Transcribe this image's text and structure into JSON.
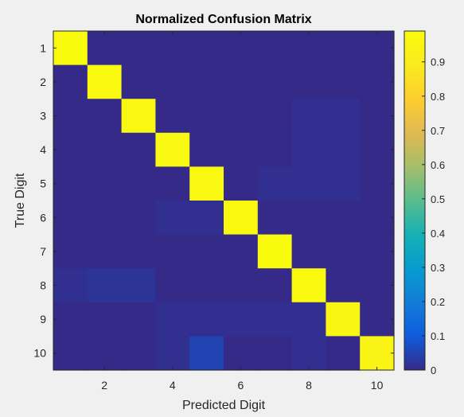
{
  "chart_data": {
    "type": "heatmap",
    "title": "Normalized Confusion Matrix",
    "xlabel": "Predicted Digit",
    "ylabel": "True Digit",
    "rows": [
      1,
      2,
      3,
      4,
      5,
      6,
      7,
      8,
      9,
      10
    ],
    "cols": [
      1,
      2,
      3,
      4,
      5,
      6,
      7,
      8,
      9,
      10
    ],
    "x_ticks": [
      2,
      4,
      6,
      8,
      10
    ],
    "y_ticks": [
      1,
      2,
      3,
      4,
      5,
      6,
      7,
      8,
      9,
      10
    ],
    "values": [
      [
        0.99,
        0.0,
        0.0,
        0.0,
        0.0,
        0.0,
        0.0,
        0.0,
        0.0,
        0.0
      ],
      [
        0.0,
        0.98,
        0.0,
        0.0,
        0.0,
        0.0,
        0.0,
        0.0,
        0.0,
        0.0
      ],
      [
        0.0,
        0.0,
        0.97,
        0.0,
        0.0,
        0.0,
        0.0,
        0.01,
        0.01,
        0.0
      ],
      [
        0.0,
        0.0,
        0.0,
        0.97,
        0.0,
        0.0,
        0.0,
        0.01,
        0.01,
        0.0
      ],
      [
        0.0,
        0.0,
        0.0,
        0.0,
        0.97,
        0.0,
        0.01,
        0.01,
        0.01,
        0.0
      ],
      [
        0.0,
        0.0,
        0.0,
        0.01,
        0.01,
        0.98,
        0.0,
        0.0,
        0.0,
        0.0
      ],
      [
        0.0,
        0.0,
        0.0,
        0.0,
        0.0,
        0.0,
        0.99,
        0.0,
        0.0,
        0.0
      ],
      [
        0.01,
        0.02,
        0.02,
        0.0,
        0.0,
        0.0,
        0.0,
        0.98,
        0.0,
        0.0
      ],
      [
        0.0,
        0.0,
        0.0,
        0.01,
        0.01,
        0.01,
        0.01,
        0.01,
        0.96,
        0.0
      ],
      [
        0.0,
        0.0,
        0.0,
        0.01,
        0.05,
        0.0,
        0.0,
        0.01,
        0.0,
        0.94
      ]
    ],
    "colorbar": {
      "min": 0,
      "max": 0.99,
      "ticks": [
        0,
        0.1,
        0.2,
        0.3,
        0.4,
        0.5,
        0.6,
        0.7,
        0.8,
        0.9
      ],
      "tick_labels": [
        "0",
        "0.1",
        "0.2",
        "0.3",
        "0.4",
        "0.5",
        "0.6",
        "0.7",
        "0.8",
        "0.9"
      ],
      "colormap": "parula"
    },
    "colors": {
      "background": "#f0f0f0",
      "axis": "#262626",
      "text": "#262626"
    }
  }
}
